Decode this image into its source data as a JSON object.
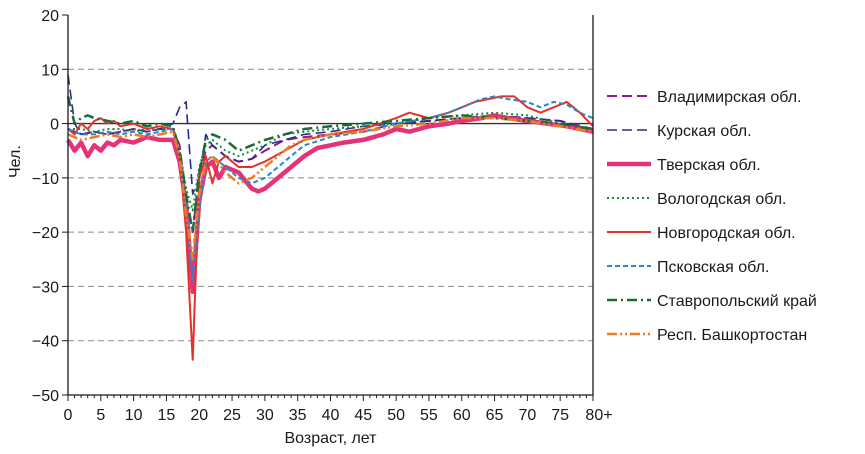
{
  "chart_data": {
    "type": "line",
    "xlabel": "Возраст, лет",
    "ylabel": "Чел.",
    "xlim": [
      0,
      80
    ],
    "ylim": [
      -50,
      20
    ],
    "x_ticks": [
      0,
      5,
      10,
      15,
      20,
      25,
      30,
      35,
      40,
      45,
      50,
      55,
      60,
      65,
      70,
      75,
      80
    ],
    "x_tick_labels": [
      "0",
      "5",
      "10",
      "15",
      "20",
      "25",
      "30",
      "35",
      "40",
      "45",
      "50",
      "55",
      "60",
      "65",
      "70",
      "75",
      "80+"
    ],
    "y_ticks": [
      20,
      10,
      0,
      -10,
      -20,
      -30,
      -40,
      -50
    ],
    "y_tick_labels": [
      "20",
      "10",
      "0",
      "−10",
      "−20",
      "−30",
      "−40",
      "−50"
    ],
    "grid": "horizontal dashed",
    "legend_position": "right",
    "series": [
      {
        "name": "Владимирская обл.",
        "color": "#8e1a8c",
        "style": "long-dash",
        "points": [
          [
            0,
            -1
          ],
          [
            2,
            -2
          ],
          [
            4,
            -1.5
          ],
          [
            6,
            -2
          ],
          [
            8,
            -1.5
          ],
          [
            10,
            -1
          ],
          [
            12,
            -1.5
          ],
          [
            14,
            -1
          ],
          [
            16,
            -1
          ],
          [
            17,
            -4
          ],
          [
            18,
            -14
          ],
          [
            19,
            -20
          ],
          [
            20,
            -9
          ],
          [
            21,
            -5
          ],
          [
            22,
            -4
          ],
          [
            24,
            -6
          ],
          [
            26,
            -7
          ],
          [
            28,
            -6.5
          ],
          [
            30,
            -5
          ],
          [
            33,
            -3
          ],
          [
            36,
            -2.5
          ],
          [
            40,
            -2
          ],
          [
            45,
            -1.5
          ],
          [
            50,
            0
          ],
          [
            55,
            0.5
          ],
          [
            60,
            1
          ],
          [
            65,
            1.5
          ],
          [
            70,
            1
          ],
          [
            75,
            0.5
          ],
          [
            80,
            -1
          ]
        ]
      },
      {
        "name": "Курская обл.",
        "color": "#2c2b8a",
        "style": "long-dash-thin",
        "points": [
          [
            0,
            9
          ],
          [
            1,
            0
          ],
          [
            2,
            -2
          ],
          [
            4,
            -1.5
          ],
          [
            6,
            -2
          ],
          [
            8,
            -1.5
          ],
          [
            10,
            -1
          ],
          [
            12,
            -1.5
          ],
          [
            14,
            -1
          ],
          [
            16,
            0
          ],
          [
            17,
            3
          ],
          [
            18,
            4
          ],
          [
            19,
            -13
          ],
          [
            20,
            -10
          ],
          [
            21,
            -2
          ],
          [
            22,
            -4
          ],
          [
            24,
            -6
          ],
          [
            26,
            -7
          ],
          [
            28,
            -6.5
          ],
          [
            30,
            -4
          ],
          [
            33,
            -3
          ],
          [
            36,
            -2
          ],
          [
            40,
            -1.5
          ],
          [
            45,
            -0.5
          ],
          [
            50,
            0
          ],
          [
            55,
            0.5
          ],
          [
            60,
            1
          ],
          [
            65,
            1.5
          ],
          [
            70,
            1
          ],
          [
            75,
            0.5
          ],
          [
            80,
            -1.5
          ]
        ]
      },
      {
        "name": "Тверская обл.",
        "color": "#e5337a",
        "style": "thick-solid",
        "points": [
          [
            0,
            -3
          ],
          [
            1,
            -5
          ],
          [
            2,
            -3.5
          ],
          [
            3,
            -6
          ],
          [
            4,
            -4
          ],
          [
            5,
            -5
          ],
          [
            6,
            -3.5
          ],
          [
            7,
            -4
          ],
          [
            8,
            -3
          ],
          [
            10,
            -3.5
          ],
          [
            12,
            -2.5
          ],
          [
            14,
            -3
          ],
          [
            16,
            -3
          ],
          [
            17,
            -7
          ],
          [
            18,
            -15
          ],
          [
            19,
            -31
          ],
          [
            20,
            -14
          ],
          [
            21,
            -8
          ],
          [
            22,
            -7
          ],
          [
            23,
            -10
          ],
          [
            24,
            -8
          ],
          [
            26,
            -9
          ],
          [
            28,
            -12
          ],
          [
            29,
            -12.5
          ],
          [
            30,
            -12
          ],
          [
            32,
            -10
          ],
          [
            34,
            -8
          ],
          [
            36,
            -6
          ],
          [
            38,
            -4.5
          ],
          [
            40,
            -4
          ],
          [
            42,
            -3.5
          ],
          [
            45,
            -3
          ],
          [
            48,
            -2
          ],
          [
            50,
            -1
          ],
          [
            52,
            -1.5
          ],
          [
            55,
            -0.5
          ],
          [
            58,
            0
          ],
          [
            60,
            0.5
          ],
          [
            63,
            1
          ],
          [
            65,
            1.5
          ],
          [
            67,
            1
          ],
          [
            70,
            0.5
          ],
          [
            73,
            0
          ],
          [
            76,
            -0.5
          ],
          [
            80,
            -1.5
          ]
        ]
      },
      {
        "name": "Вологодская обл.",
        "color": "#1a8a3a",
        "style": "dotted",
        "points": [
          [
            0,
            -1
          ],
          [
            2,
            -1
          ],
          [
            4,
            -1.5
          ],
          [
            6,
            -1
          ],
          [
            8,
            -1
          ],
          [
            10,
            -1.5
          ],
          [
            12,
            -1
          ],
          [
            14,
            -1
          ],
          [
            16,
            -1
          ],
          [
            17,
            -5
          ],
          [
            18,
            -12
          ],
          [
            19,
            -16
          ],
          [
            20,
            -8
          ],
          [
            21,
            -4
          ],
          [
            22,
            -3
          ],
          [
            24,
            -5
          ],
          [
            26,
            -6
          ],
          [
            28,
            -5
          ],
          [
            30,
            -4
          ],
          [
            33,
            -2
          ],
          [
            36,
            -1.5
          ],
          [
            40,
            -1
          ],
          [
            45,
            -0.5
          ],
          [
            50,
            0
          ],
          [
            55,
            1
          ],
          [
            60,
            1.5
          ],
          [
            65,
            2
          ],
          [
            70,
            1.5
          ],
          [
            75,
            0
          ],
          [
            80,
            -1
          ]
        ]
      },
      {
        "name": "Новгородская обл.",
        "color": "#e2332b",
        "style": "solid",
        "points": [
          [
            0,
            -1
          ],
          [
            1,
            -2
          ],
          [
            2,
            0
          ],
          [
            3,
            -1
          ],
          [
            4,
            0.5
          ],
          [
            5,
            1
          ],
          [
            6,
            0
          ],
          [
            7,
            0.5
          ],
          [
            8,
            -0.5
          ],
          [
            10,
            0
          ],
          [
            12,
            -1
          ],
          [
            14,
            -0.5
          ],
          [
            16,
            -1
          ],
          [
            17,
            -6
          ],
          [
            18,
            -20
          ],
          [
            19,
            -43.5
          ],
          [
            20,
            -10
          ],
          [
            21,
            -6
          ],
          [
            22,
            -11
          ],
          [
            23,
            -7
          ],
          [
            24,
            -6
          ],
          [
            26,
            -8
          ],
          [
            28,
            -8
          ],
          [
            30,
            -7
          ],
          [
            33,
            -5
          ],
          [
            36,
            -3
          ],
          [
            40,
            -2
          ],
          [
            45,
            -1
          ],
          [
            50,
            1
          ],
          [
            52,
            2
          ],
          [
            55,
            1
          ],
          [
            58,
            2
          ],
          [
            60,
            3
          ],
          [
            62,
            4
          ],
          [
            64,
            4.5
          ],
          [
            66,
            5
          ],
          [
            68,
            5
          ],
          [
            70,
            3
          ],
          [
            72,
            2
          ],
          [
            74,
            3
          ],
          [
            76,
            4
          ],
          [
            78,
            2
          ],
          [
            80,
            -0.5
          ]
        ]
      },
      {
        "name": "Псковская обл.",
        "color": "#2a87c6",
        "style": "short-dash",
        "points": [
          [
            0,
            -1
          ],
          [
            2,
            -2
          ],
          [
            4,
            -2
          ],
          [
            6,
            -1.5
          ],
          [
            8,
            -2
          ],
          [
            10,
            -1.5
          ],
          [
            12,
            -2
          ],
          [
            14,
            -1.5
          ],
          [
            16,
            -1
          ],
          [
            17,
            -6
          ],
          [
            18,
            -15
          ],
          [
            19,
            -29
          ],
          [
            20,
            -16
          ],
          [
            21,
            -7
          ],
          [
            22,
            -6
          ],
          [
            24,
            -8
          ],
          [
            26,
            -10
          ],
          [
            28,
            -11
          ],
          [
            30,
            -10
          ],
          [
            32,
            -8
          ],
          [
            34,
            -6
          ],
          [
            36,
            -4
          ],
          [
            40,
            -2.5
          ],
          [
            45,
            -1.5
          ],
          [
            50,
            0
          ],
          [
            55,
            1
          ],
          [
            58,
            2
          ],
          [
            60,
            3
          ],
          [
            63,
            4.5
          ],
          [
            65,
            5
          ],
          [
            67,
            4.5
          ],
          [
            70,
            4
          ],
          [
            72,
            3
          ],
          [
            74,
            4
          ],
          [
            76,
            3.5
          ],
          [
            78,
            2
          ],
          [
            80,
            1
          ]
        ]
      },
      {
        "name": "Ставропольский край",
        "color": "#1b6b3a",
        "style": "dash-dot",
        "points": [
          [
            0,
            5
          ],
          [
            1,
            0
          ],
          [
            2,
            1
          ],
          [
            3,
            1.5
          ],
          [
            4,
            1
          ],
          [
            6,
            0.5
          ],
          [
            8,
            0
          ],
          [
            10,
            0.5
          ],
          [
            12,
            -0.5
          ],
          [
            14,
            0
          ],
          [
            16,
            -0.5
          ],
          [
            17,
            -5
          ],
          [
            18,
            -13
          ],
          [
            19,
            -20
          ],
          [
            20,
            -9
          ],
          [
            21,
            -3
          ],
          [
            22,
            -2
          ],
          [
            24,
            -3
          ],
          [
            26,
            -5
          ],
          [
            28,
            -4
          ],
          [
            30,
            -3
          ],
          [
            33,
            -2
          ],
          [
            36,
            -1
          ],
          [
            40,
            -0.5
          ],
          [
            45,
            0
          ],
          [
            50,
            0.5
          ],
          [
            55,
            1
          ],
          [
            60,
            1.5
          ],
          [
            65,
            1
          ],
          [
            70,
            0.5
          ],
          [
            75,
            0
          ],
          [
            80,
            -1
          ]
        ]
      },
      {
        "name": "Респ. Башкортостан",
        "color": "#ee7d1f",
        "style": "dash-dot-dot",
        "points": [
          [
            0,
            -2
          ],
          [
            2,
            -3
          ],
          [
            4,
            -2.5
          ],
          [
            6,
            -2
          ],
          [
            8,
            -2.5
          ],
          [
            10,
            -2
          ],
          [
            12,
            -2.5
          ],
          [
            14,
            -2
          ],
          [
            16,
            -1.5
          ],
          [
            17,
            -6
          ],
          [
            18,
            -17
          ],
          [
            19,
            -25
          ],
          [
            20,
            -13
          ],
          [
            21,
            -7
          ],
          [
            22,
            -6
          ],
          [
            24,
            -9
          ],
          [
            26,
            -11
          ],
          [
            28,
            -10
          ],
          [
            30,
            -8
          ],
          [
            32,
            -6
          ],
          [
            34,
            -4
          ],
          [
            36,
            -3
          ],
          [
            40,
            -2
          ],
          [
            45,
            -1.5
          ],
          [
            50,
            -0.5
          ],
          [
            55,
            0
          ],
          [
            60,
            1
          ],
          [
            65,
            1
          ],
          [
            70,
            0.5
          ],
          [
            75,
            -0.5
          ],
          [
            80,
            -1.5
          ]
        ]
      }
    ]
  }
}
